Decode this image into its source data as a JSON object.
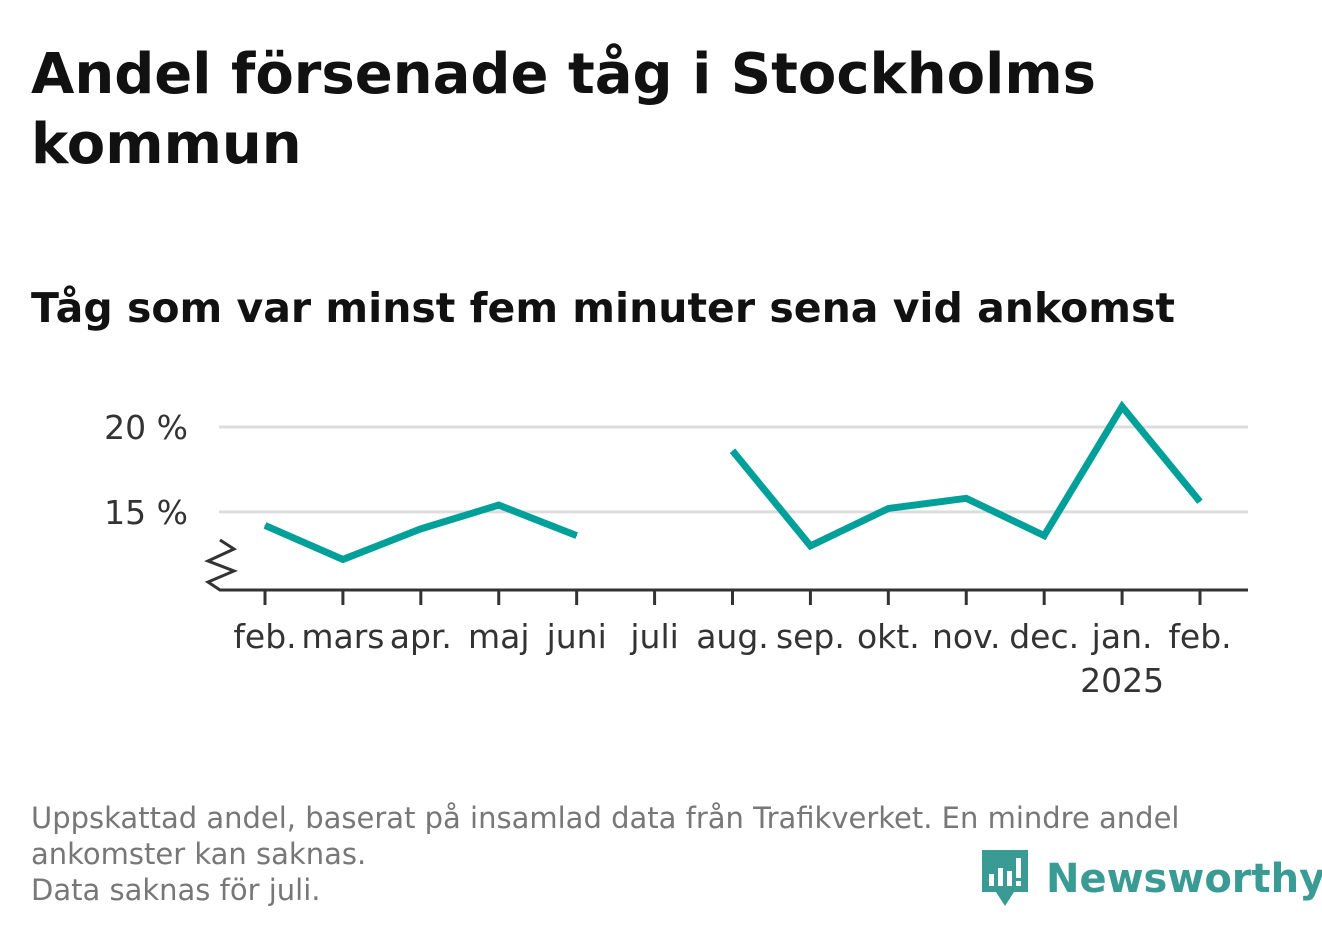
{
  "chart_data": {
    "type": "line",
    "title": "Andel försenade tåg i Stockholms kommun",
    "subtitle": "Tåg som var minst fem minuter sena vid ankomst",
    "categories": [
      "feb.",
      "mars",
      "apr.",
      "maj",
      "juni",
      "juli",
      "aug.",
      "sep.",
      "okt.",
      "nov.",
      "dec.",
      "jan.",
      "feb."
    ],
    "year_label": "2025",
    "year_label_under": "jan.",
    "series": [
      {
        "values": [
          14.2,
          12.2,
          14.0,
          15.4,
          13.6,
          null,
          18.6,
          13.0,
          15.2,
          15.8,
          13.6,
          21.2,
          15.6
        ],
        "color": "#00a09a"
      }
    ],
    "yticks": [
      {
        "value": 15,
        "label": "15 %"
      },
      {
        "value": 20,
        "label": "20 %"
      }
    ],
    "ylim": [
      10.4,
      22
    ],
    "y_axis_break": true,
    "grid": true,
    "legend": "none"
  },
  "footnote": {
    "line1": "Uppskattad andel, baserat på insamlad data från Trafikverket. En mindre andel",
    "line2": "ankomster kan saknas.",
    "line3": "Data saknas för juli."
  },
  "brand": {
    "name": "Newsworthy",
    "icon": "bar-chart-icon",
    "color": "#3a9a94"
  }
}
